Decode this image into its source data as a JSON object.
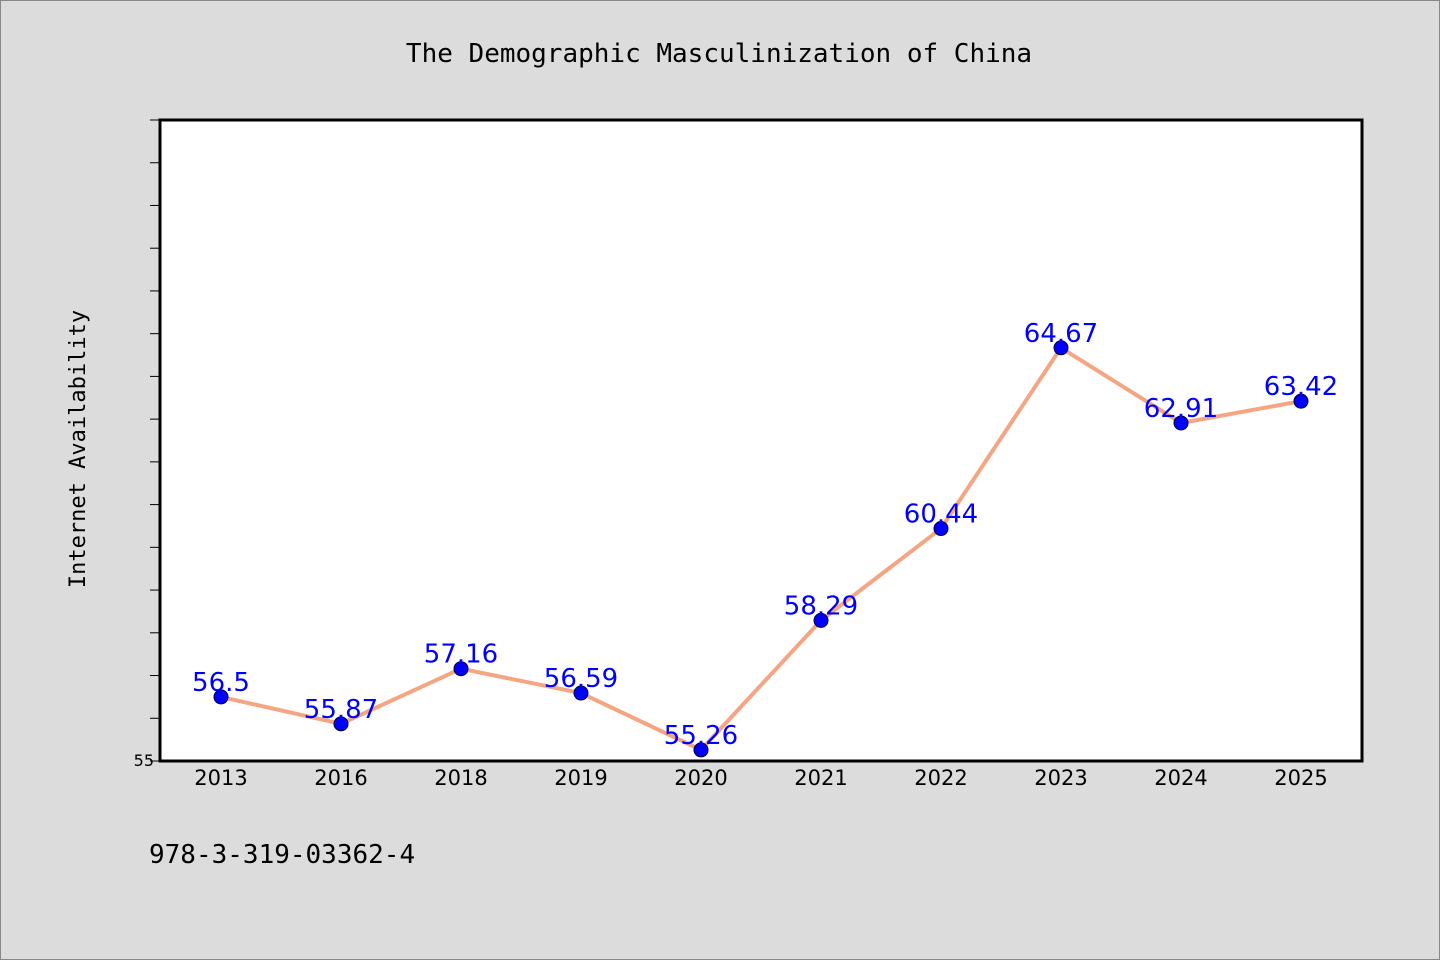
{
  "chart_data": {
    "type": "line",
    "title": "The Demographic Masculinization of China",
    "xlabel": "",
    "ylabel": "Internet Availability",
    "categories": [
      "2013",
      "2016",
      "2018",
      "2019",
      "2020",
      "2021",
      "2022",
      "2023",
      "2024",
      "2025"
    ],
    "series": [
      {
        "values": [
          56.5,
          55.87,
          57.16,
          56.59,
          55.26,
          58.29,
          60.44,
          64.67,
          62.91,
          63.42
        ]
      }
    ],
    "data_labels": [
      "56.5",
      "55.87",
      "57.16",
      "56.59",
      "55.26",
      "58.29",
      "60.44",
      "64.67",
      "62.91",
      "63.42"
    ],
    "ylim": [
      55,
      70
    ],
    "y_tick_labels": [
      "55"
    ],
    "grid": false,
    "legend": "none",
    "colors": {
      "line": "#f4a582",
      "marker": "#0000ff",
      "label": "#0000ff",
      "background": "#dcdcdc",
      "plot_area": "#ffffff"
    }
  },
  "footnote": "978-3-319-03362-4"
}
